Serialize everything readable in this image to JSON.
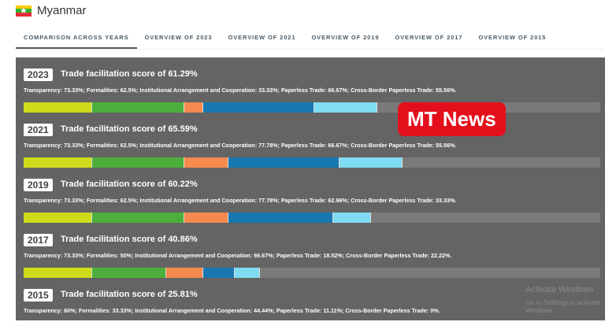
{
  "header": {
    "title": "Myanmar",
    "flag_colors": [
      "#fecb00",
      "#34b233",
      "#ea2839"
    ]
  },
  "tabs": [
    "COMPARISON ACROSS YEARS",
    "OVERVIEW OF 2023",
    "OVERVIEW OF 2021",
    "OVERVIEW OF 2019",
    "OVERVIEW OF 2017",
    "OVERVIEW OF 2015"
  ],
  "categories": [
    {
      "name": "Transparency",
      "color": "#cddb1a",
      "weight": 0.162
    },
    {
      "name": "Formalities",
      "color": "#4caf3c",
      "weight": 0.256
    },
    {
      "name": "Institutional Arrangement and Cooperation",
      "color": "#f58a4f",
      "weight": 0.098
    },
    {
      "name": "Paperless Trade",
      "color": "#1777b0",
      "weight": 0.289
    },
    {
      "name": "Cross-Border Paperless Trade",
      "color": "#7fdcf2",
      "weight": 0.197
    }
  ],
  "years": [
    {
      "year": "2023",
      "score": "Trade facilitation score of 61.29%",
      "desc": "Transparency: 73.33%; Formalities: 62.5%; Institutional Arrangement and Cooperation: 33.33%; Paperless Trade: 66.67%; Cross-Border Paperless Trade: 55.56%.",
      "values": [
        73.33,
        62.5,
        33.33,
        66.67,
        55.56
      ]
    },
    {
      "year": "2021",
      "score": "Trade facilitation score of 65.59%",
      "desc": "Transparency: 73.33%; Formalities: 62.5%; Institutional Arrangement and Cooperation: 77.78%; Paperless Trade: 66.67%; Cross-Border Paperless Trade: 55.56%.",
      "values": [
        73.33,
        62.5,
        77.78,
        66.67,
        55.56
      ]
    },
    {
      "year": "2019",
      "score": "Trade facilitation score of 60.22%",
      "desc": "Transparency: 73.33%; Formalities: 62.5%; Institutional Arrangement and Cooperation: 77.78%; Paperless Trade: 62.96%; Cross-Border Paperless Trade: 33.33%.",
      "values": [
        73.33,
        62.5,
        77.78,
        62.96,
        33.33
      ]
    },
    {
      "year": "2017",
      "score": "Trade facilitation score of 40.86%",
      "desc": "Transparency: 73.33%; Formalities: 50%; Institutional Arrangement and Cooperation: 66.67%; Paperless Trade: 18.52%; Cross-Border Paperless Trade: 22.22%.",
      "values": [
        73.33,
        50,
        66.67,
        18.52,
        22.22
      ]
    },
    {
      "year": "2015",
      "score": "Trade facilitation score of 25.81%",
      "desc": "Transparency: 60%; Formalities: 33.33%; Institutional Arrangement and Cooperation: 44.44%; Paperless Trade: 11.11%; Cross-Border Paperless Trade: 0%.",
      "values": [
        60,
        33.33,
        44.44,
        11.11,
        0
      ]
    }
  ],
  "watermark": "MT News",
  "activation": {
    "line1": "Activate Windows",
    "line2": "Go to Settings to activate Windows."
  }
}
